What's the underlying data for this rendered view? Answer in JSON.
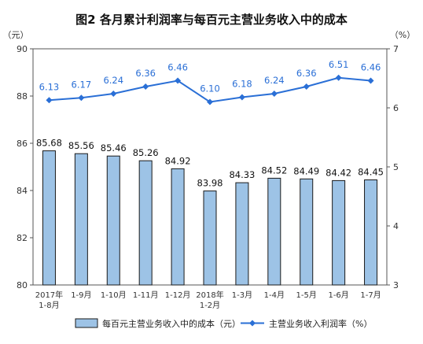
{
  "chart_data": {
    "type": "bar+line",
    "title": "图2  各月累计利润率与每百元主营业务收入中的成本",
    "left_unit": "（元）",
    "right_unit": "（%）",
    "categories": [
      [
        "2017年",
        "1-8月"
      ],
      [
        "1-9月"
      ],
      [
        "1-10月"
      ],
      [
        "1-11月"
      ],
      [
        "1-12月"
      ],
      [
        "2018年",
        "1-2月"
      ],
      [
        "1-3月"
      ],
      [
        "1-4月"
      ],
      [
        "1-5月"
      ],
      [
        "1-6月"
      ],
      [
        "1-7月"
      ]
    ],
    "series": [
      {
        "name": "每百元主营业务收入中的成本（元）",
        "type": "bar",
        "axis": "left",
        "color": "#9dc3e6",
        "border": "#1a1a1a",
        "values": [
          85.68,
          85.56,
          85.46,
          85.26,
          84.92,
          83.98,
          84.33,
          84.52,
          84.49,
          84.42,
          84.45
        ],
        "labels": [
          "85.68",
          "85.56",
          "85.46",
          "85.26",
          "84.92",
          "83.98",
          "84.33",
          "84.52",
          "84.49",
          "84.42",
          "84.45"
        ]
      },
      {
        "name": "主营业务收入利润率（%）",
        "type": "line",
        "axis": "right",
        "color": "#2a6fd6",
        "values": [
          6.13,
          6.17,
          6.24,
          6.36,
          6.46,
          6.1,
          6.18,
          6.24,
          6.36,
          6.51,
          6.46
        ],
        "labels": [
          "6.13",
          "6.17",
          "6.24",
          "6.36",
          "6.46",
          "6.10",
          "6.18",
          "6.24",
          "6.36",
          "6.51",
          "6.46"
        ]
      }
    ],
    "left_axis": {
      "min": 80,
      "max": 90,
      "ticks": [
        "80",
        "82",
        "84",
        "86",
        "88",
        "90"
      ]
    },
    "right_axis": {
      "min": 3,
      "max": 7,
      "ticks": [
        "3",
        "4",
        "5",
        "6",
        "7"
      ]
    },
    "grid": false,
    "legend_position": "bottom"
  }
}
